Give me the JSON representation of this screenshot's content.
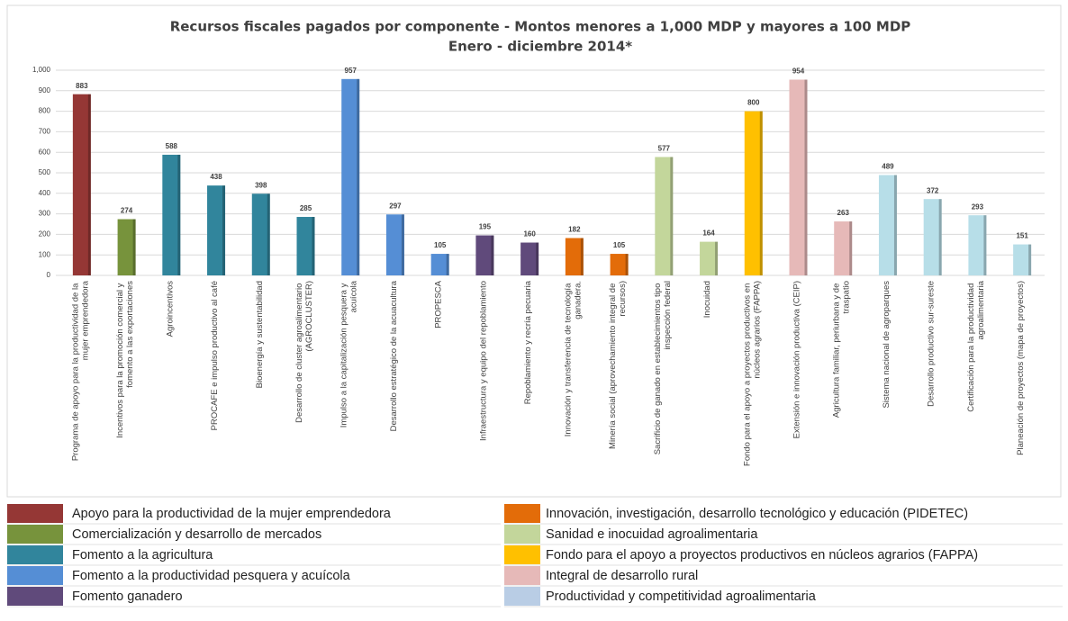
{
  "chart_data": {
    "type": "bar",
    "title": "Recursos fiscales pagados por componente - Montos menores a 1,000 MDP y mayores a 100 MDP",
    "subtitle": "Enero - diciembre 2014*",
    "categories": [
      "Programa de apoyo para la productividad de la mujer emprendedora",
      "Incentivos para la promoción comercial y fomento a las exportaciones",
      "Agroincentivos",
      "PROCAFE e impulso productivo al café",
      "Bioenergía y sustentabilidad",
      "Desarrollo de cluster agroalimentario (AGROCLUSTER)",
      "Impulso a la capitalización pesquera y acuícola",
      "Desarrollo estratégico de la acuacultura",
      "PROPESCA",
      "Infraestructura y equipo del repoblamiento",
      "Repoblamiento y recría pecuaria",
      "Innovación y transferencia de tecnología ganadera.",
      "Minería social (aprovechamiento integral de recursos)",
      "Sacrificio de ganado en establecimientos tipo inspección federal",
      "Inocuidad",
      "Fondo para el apoyo a proyectos productivos en núcleos agrarios (FAPPA)",
      "Extensión e innovación productiva (CEIP)",
      "Agricultura familiar, periurbana y de traspatio",
      "Sistema nacional de agroparques",
      "Desarrollo productivo sur-sureste",
      "Certificación para la productividad agroalimentaria",
      "Planeación de proyectos (mapa de proyectos)"
    ],
    "values": [
      883,
      274,
      588,
      438,
      398,
      285,
      957,
      297,
      105,
      195,
      160,
      182,
      105,
      577,
      164,
      800,
      954,
      263,
      489,
      372,
      293,
      151
    ],
    "colors": [
      "#953735",
      "#77933c",
      "#31859c",
      "#31859c",
      "#31859c",
      "#31859c",
      "#558ed5",
      "#558ed5",
      "#558ed5",
      "#604a7b",
      "#604a7b",
      "#e36c09",
      "#e36c09",
      "#c3d69b",
      "#c3d69b",
      "#ffc000",
      "#e6b9b8",
      "#e6b9b8",
      "#b7dee8",
      "#b7dee8",
      "#b7dee8",
      "#b7dee8"
    ],
    "ylim": [
      0,
      1000
    ],
    "yticks": [
      0,
      100,
      200,
      300,
      400,
      500,
      600,
      700,
      800,
      900,
      {
        "value": 1000,
        "label": "1,000"
      }
    ],
    "grid": true,
    "legend": [
      {
        "name": "Apoyo para la productividad de la mujer emprendedora",
        "color": "#953735"
      },
      {
        "name": "Comercialización y desarrollo de mercados",
        "color": "#77933c"
      },
      {
        "name": "Fomento a la agricultura",
        "color": "#31859c"
      },
      {
        "name": "Fomento a la productividad pesquera y acuícola",
        "color": "#558ed5"
      },
      {
        "name": "Fomento ganadero",
        "color": "#604a7b"
      },
      {
        "name": "Innovación, investigación, desarrollo tecnológico y educación (PIDETEC)",
        "color": "#e36c09"
      },
      {
        "name": "Sanidad e inocuidad agroalimentaria",
        "color": "#c3d69b"
      },
      {
        "name": "Fondo para el apoyo a proyectos productivos en núcleos agrarios (FAPPA)",
        "color": "#ffc000"
      },
      {
        "name": "Integral de desarrollo rural",
        "color": "#e6b9b8"
      },
      {
        "name": "Productividad y competitividad agroalimentaria",
        "color": "#b9cde5"
      }
    ]
  }
}
